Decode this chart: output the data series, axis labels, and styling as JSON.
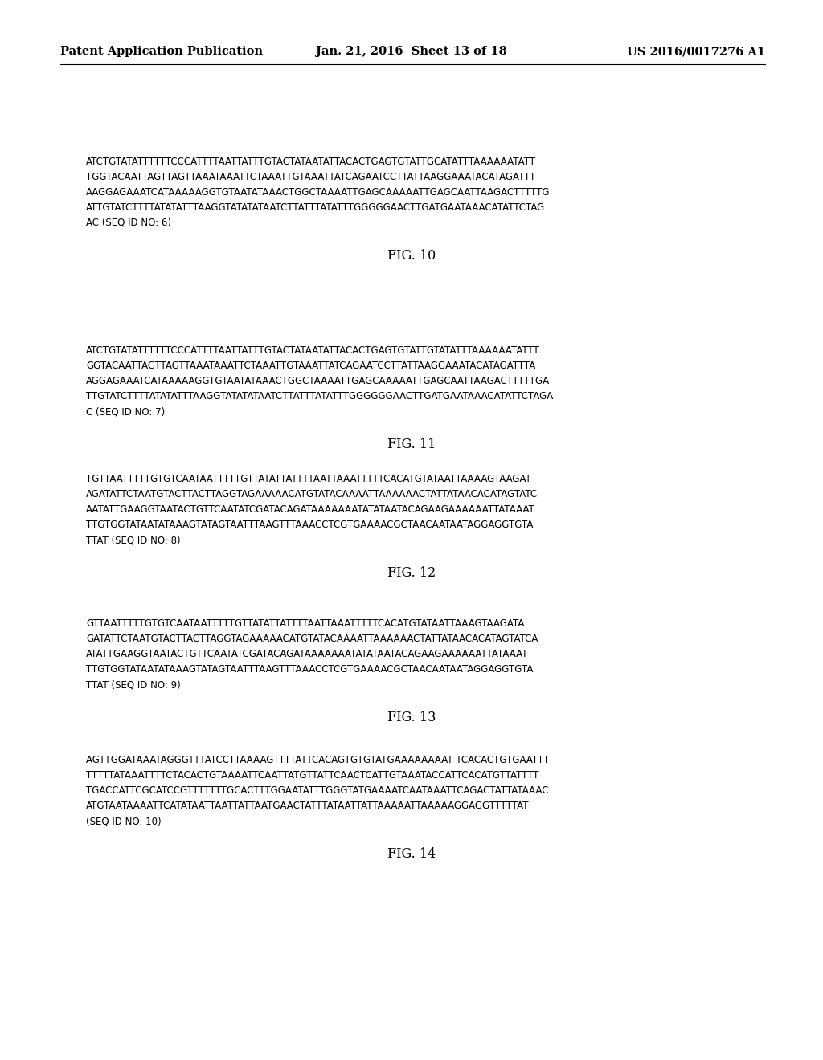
{
  "header_left": "Patent Application Publication",
  "header_mid": "Jan. 21, 2016  Sheet 13 of 18",
  "header_right": "US 2016/0017276 A1",
  "fig10_text": [
    "ATCTGTATATTTTTTCCCATTTTAATTATTTGTACTATAATATTACACTGAGTGTATTGCATATTTAAAAAATATT",
    "TGGTACAATTAGTTAGTTAAATAAATTCTAAATTGTAAATTATCAGAATCCTTATTAAGGAAATACATAGATTT",
    "AAGGAGAAATCATAAAAAGGTGTAATATAAACTGGCTAAAATTGAGCAAAAATTGAGCAATTAAGACTTTTTG",
    "ATTGTATCTTTTATATATTTAAGGTATATATAATCTTATTTATATTTGGGGGAACTTGATGAATAAACATATTCTAG",
    "AC (SEQ ID NO: 6)"
  ],
  "fig10_label": "FIG. 10",
  "fig11_text": [
    "ATCTGTATATTTTTTCCCATTTTAATTATTTGTACTATAATATTACACTGAGTGTATTGTATATTTAAAAAATATTT",
    "GGTACAATTAGTTAGTTAAATAAATTCTAAATTGTAAATTATCAGAATCCTTATTAAGGAAATACATAGATTTA",
    "AGGAGAAATCATAAAAAGGTGTAATATAAACTGGCTAAAATTGAGCAAAAATTGAGCAATTAAGACTTTTTGA",
    "TTGTATCTTTTATATATTTAAGGTATATATAATCTTATTTATATTTGGGGGGAACTTGATGAATAAACATATTCTAGA",
    "C (SEQ ID NO: 7)"
  ],
  "fig11_label": "FIG. 11",
  "fig12_text": [
    "TGTTAATTTTTGTGTCAATAATTTTTGTTATATTATTTTAATTAAATTTTTCACATGTATAATTAAAAGTAAGAT",
    "AGATATTCTAATGTACTTACTTAGGTAGAAAAACATGTATACAAAATTAAAAAACTATTATAACACATAGTATC",
    "AATATTGAAGGTAATACTGTTCAATATCGATACAGATAAAAAAATATATAATACAGAAGAAAAAATTATAAAT",
    "TTGTGGTATAATATAAAGTATAGTAATTTAAGTTTAAACCTCGTGAAAACGCTAACAATAATAGGAGGTGTA",
    "TTAT (SEQ ID NO: 8)"
  ],
  "fig12_label": "FIG. 12",
  "fig13_text": [
    "GTTAATTTTTGTGTCAATAATTTTTGTTATATTATTTTAATTAAATTTTTCACATGTATAATTAAAGTAAGATA",
    "GATATTCTAATGTACTTACTTAGGTAGAAAAACATGTATACAAAATTAAAAAACTATTATAACACATAGTATCA",
    "ATATTGAAGGTAATACTGTTCAATATCGATACAGATAAAAAAATATATAATACAGAAGAAAAAATTATAAAT",
    "TTGTGGTATAATATAAAGTATAGTAATTTAAGTTTAAACCTCGTGAAAACGCTAACAATAATAGGAGGTGTA",
    "TTAT (SEQ ID NO: 9)"
  ],
  "fig13_label": "FIG. 13",
  "fig14_text": [
    "AGTTGGATAAATAGGGTTTATCCTTAAAAGTTTTATTCACAGTGTGTATGAAAAAAAAT TCACACTGTGAATTT",
    "TTTTTATAAATTTTCTACACTGTAAAATTCAATTATGTTATTCAACTCATTGTAAATACCATTCACATGTTATTTT",
    "TGACCATTCGCATCCGTTTTTTTGCACTTTGGAATATTTGGGTATGAAAATCAATAAATTCAGACTATTATAAAC",
    "ATGTAATAAAATTCATATAATTAATTATTAATGAACTATTTATAATTATTAAAAATTAAAAAGGAGGTTTTTAT",
    "(SEQ ID NO: 10)"
  ],
  "fig14_label": "FIG. 14",
  "bg_color": "#ffffff",
  "text_color": "#000000",
  "header_font_size": 10.5,
  "body_font_size": 8.5,
  "label_font_size": 11.5
}
